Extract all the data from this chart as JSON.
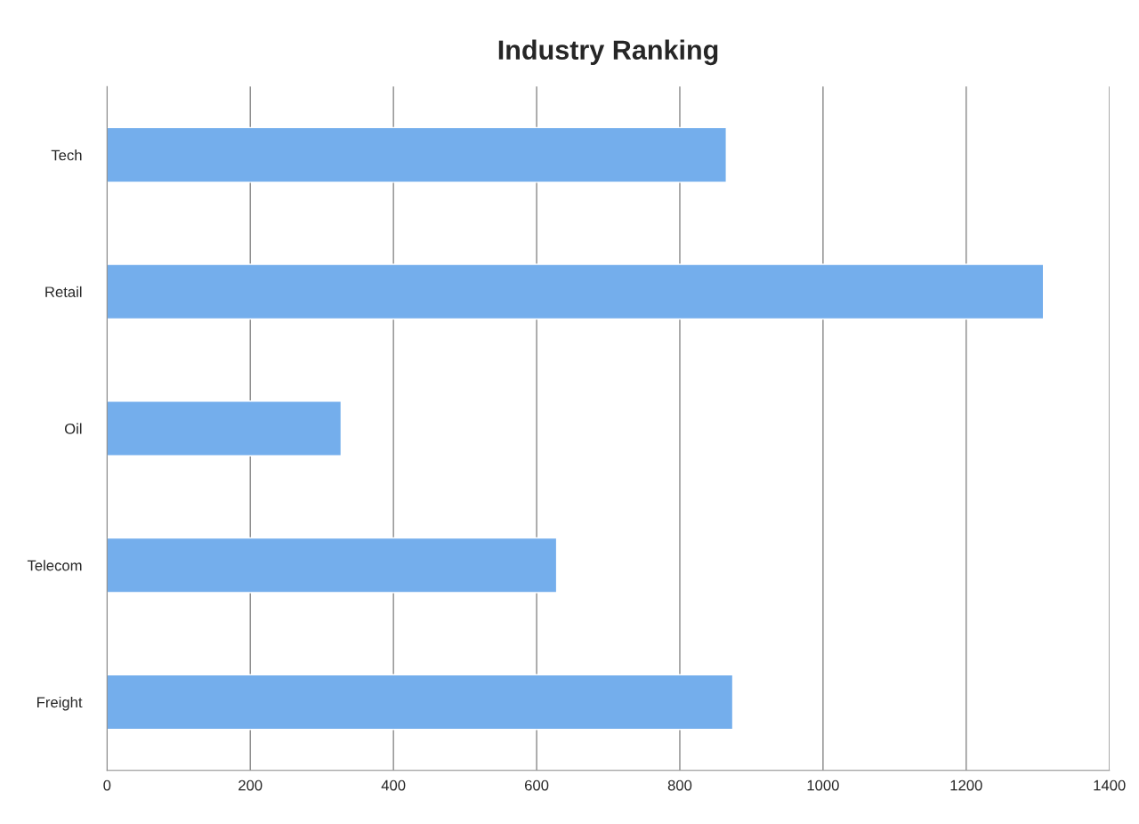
{
  "chart_data": {
    "type": "bar",
    "orientation": "horizontal",
    "title": "Industry Ranking",
    "categories": [
      "Tech",
      "Retail",
      "Oil",
      "Telecom",
      "Freight"
    ],
    "values": [
      865,
      1308,
      327,
      628,
      874
    ],
    "color": "#74aeec",
    "xlim": [
      0,
      1400
    ],
    "xticks": [
      0,
      200,
      400,
      600,
      800,
      1000,
      1200,
      1400
    ],
    "grid": "x",
    "legend": false
  }
}
